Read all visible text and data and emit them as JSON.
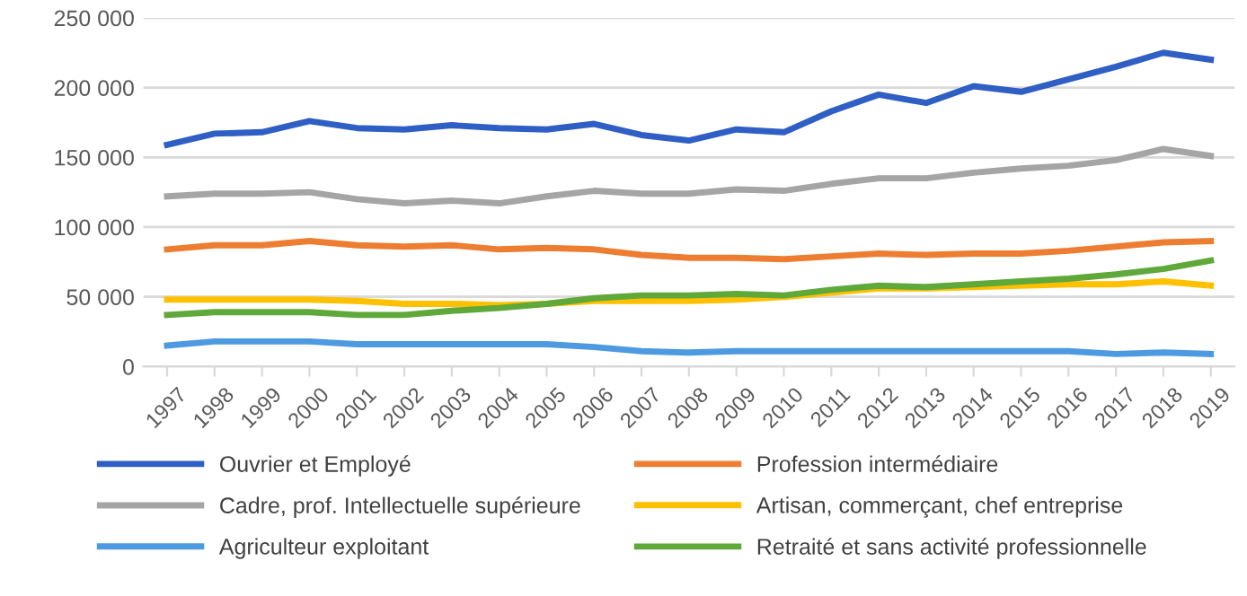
{
  "chart_data": {
    "type": "line",
    "categories": [
      "1997",
      "1998",
      "1999",
      "2000",
      "2001",
      "2002",
      "2003",
      "2004",
      "2005",
      "2006",
      "2007",
      "2008",
      "2009",
      "2010",
      "2011",
      "2012",
      "2013",
      "2014",
      "2015",
      "2016",
      "2017",
      "2018",
      "2019"
    ],
    "series": [
      {
        "name": "Ouvrier et Employé",
        "color": "#2f5fc4",
        "values": [
          159000,
          167000,
          168000,
          176000,
          171000,
          170000,
          173000,
          171000,
          170000,
          174000,
          166000,
          162000,
          170000,
          168000,
          183000,
          195000,
          189000,
          201000,
          197000,
          206000,
          215000,
          225000,
          220000
        ]
      },
      {
        "name": "Profession intermédiaire",
        "color": "#ed7d31",
        "values": [
          84000,
          87000,
          87000,
          90000,
          87000,
          86000,
          87000,
          84000,
          85000,
          84000,
          80000,
          78000,
          78000,
          77000,
          79000,
          81000,
          80000,
          81000,
          81000,
          83000,
          86000,
          89000,
          90000
        ]
      },
      {
        "name": "Cadre, prof. Intellectuelle supérieure",
        "color": "#a5a5a5",
        "values": [
          122000,
          124000,
          124000,
          125000,
          120000,
          117000,
          119000,
          117000,
          122000,
          126000,
          124000,
          124000,
          127000,
          126000,
          131000,
          135000,
          135000,
          139000,
          142000,
          144000,
          148000,
          156000,
          151000
        ]
      },
      {
        "name": "Artisan, commerçant, chef entreprise",
        "color": "#ffc000",
        "values": [
          48000,
          48000,
          48000,
          48000,
          47000,
          45000,
          45000,
          44000,
          45000,
          47000,
          47000,
          47000,
          48000,
          50000,
          53000,
          56000,
          56000,
          57000,
          58000,
          59000,
          59000,
          61000,
          58000
        ]
      },
      {
        "name": "Agriculteur exploitant",
        "color": "#4d9ae0",
        "values": [
          15000,
          18000,
          18000,
          18000,
          16000,
          16000,
          16000,
          16000,
          16000,
          14000,
          11000,
          10000,
          11000,
          11000,
          11000,
          11000,
          11000,
          11000,
          11000,
          11000,
          9000,
          10000,
          9000
        ]
      },
      {
        "name": "Retraité et sans activité professionnelle",
        "color": "#5fa83a",
        "values": [
          37000,
          39000,
          39000,
          39000,
          37000,
          37000,
          40000,
          42000,
          45000,
          49000,
          51000,
          51000,
          52000,
          51000,
          55000,
          58000,
          57000,
          59000,
          61000,
          63000,
          66000,
          70000,
          76000
        ]
      }
    ],
    "ylim": [
      0,
      250000
    ],
    "yticks": [
      {
        "value": 0,
        "label": "0"
      },
      {
        "value": 50000,
        "label": "50 000"
      },
      {
        "value": 100000,
        "label": "100 000"
      },
      {
        "value": 150000,
        "label": "150 000"
      },
      {
        "value": 200000,
        "label": "200 000"
      },
      {
        "value": 250000,
        "label": "250 000"
      }
    ],
    "grid": "y",
    "legend": "bottom",
    "marker": "none",
    "line_style": "solid"
  }
}
